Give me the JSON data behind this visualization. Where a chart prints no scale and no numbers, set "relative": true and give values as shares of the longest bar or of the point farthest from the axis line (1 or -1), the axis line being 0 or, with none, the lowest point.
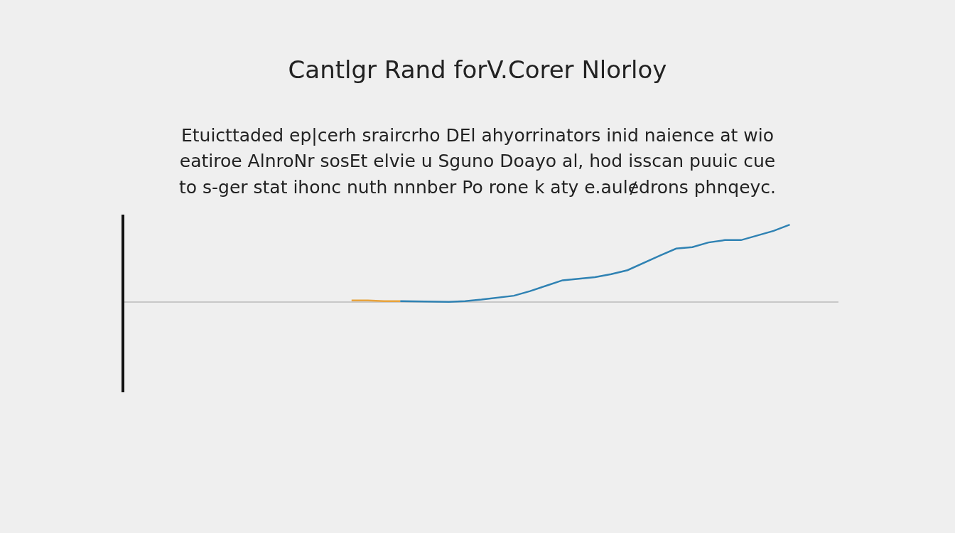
{
  "chart_data": {
    "type": "line",
    "title": "Cantlgr Rand forV.Corer Nlorloy",
    "subtitle": "Etuicttaded ep|cerh sraircrho DEl ahyorrinators inid naience at wio\neatiroe AlnroNr sosEt elvie u Sguno Doayo al, hod isscan puuic cue\nto s-ger stat ihonc nuth nnnber Po rone k aty e.aulɇdrons phnqeyc.",
    "relative": true,
    "categories": [
      null,
      null,
      null,
      null,
      null,
      null,
      null,
      null,
      null,
      null,
      null,
      null,
      null,
      null,
      null,
      null,
      null,
      null,
      null,
      null,
      null,
      null,
      null,
      null,
      null,
      null,
      null,
      null,
      null,
      null,
      null,
      null,
      null,
      null,
      null,
      null,
      null,
      null,
      null,
      null,
      null,
      null
    ],
    "series": [
      {
        "color": "#e8a33d",
        "values": [
          null,
          null,
          null,
          null,
          null,
          null,
          null,
          null,
          null,
          null,
          null,
          null,
          0.02,
          0.02,
          0.01,
          0.01,
          null,
          null,
          null,
          null,
          null,
          null,
          null,
          null,
          null,
          null,
          null,
          null,
          null,
          null,
          null,
          null,
          null,
          null,
          null,
          null,
          null,
          null,
          null,
          null,
          null,
          null
        ]
      },
      {
        "color": "#2f82b3",
        "values": [
          null,
          null,
          null,
          null,
          null,
          null,
          null,
          null,
          null,
          null,
          null,
          null,
          null,
          null,
          null,
          0.01,
          null,
          null,
          0,
          0.01,
          0.03,
          null,
          0.08,
          0.14,
          0.21,
          0.28,
          null,
          0.32,
          0.36,
          0.41,
          null,
          0.6,
          0.69,
          0.71,
          0.77,
          0.8,
          0.8,
          0.86,
          0.92,
          1.0,
          null,
          null
        ]
      }
    ]
  }
}
